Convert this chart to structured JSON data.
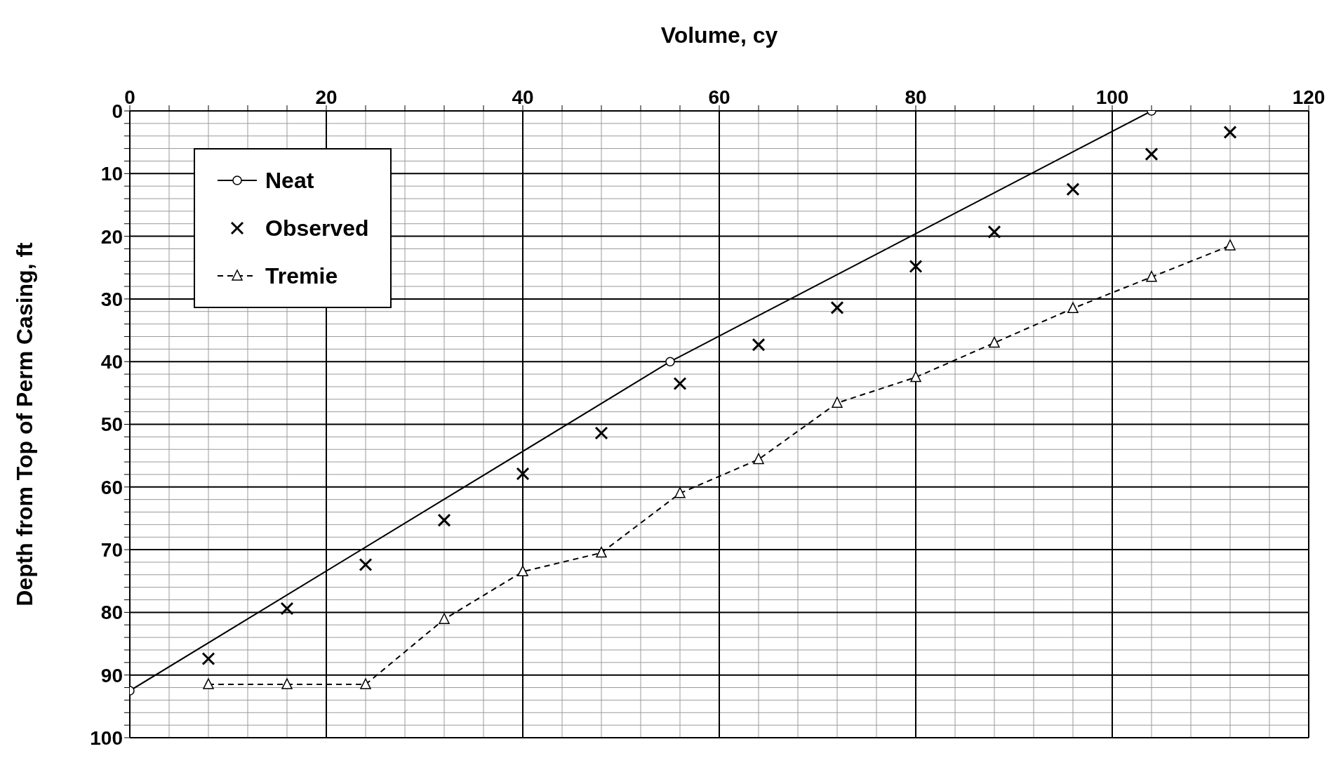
{
  "chart_data": {
    "type": "line",
    "xlabel": "Volume, cy",
    "ylabel": "Depth from Top of Perm Casing, ft",
    "xlim": [
      0,
      120
    ],
    "ylim": [
      100,
      0
    ],
    "xticks": [
      0,
      {
        "value": 4,
        "label": null
      },
      {
        "value": 8,
        "label": null
      },
      {
        "value": 12,
        "label": null
      },
      {
        "value": 16,
        "label": null
      },
      20,
      {
        "value": 24,
        "label": null
      },
      {
        "value": 28,
        "label": null
      },
      {
        "value": 32,
        "label": null
      },
      {
        "value": 36,
        "label": null
      },
      40,
      {
        "value": 44,
        "label": null
      },
      {
        "value": 48,
        "label": null
      },
      {
        "value": 52,
        "label": null
      },
      {
        "value": 56,
        "label": null
      },
      60,
      {
        "value": 64,
        "label": null
      },
      {
        "value": 68,
        "label": null
      },
      {
        "value": 72,
        "label": null
      },
      {
        "value": 76,
        "label": null
      },
      80,
      {
        "value": 84,
        "label": null
      },
      {
        "value": 88,
        "label": null
      },
      {
        "value": 92,
        "label": null
      },
      {
        "value": 96,
        "label": null
      },
      100,
      {
        "value": 104,
        "label": null
      },
      {
        "value": 108,
        "label": null
      },
      {
        "value": 112,
        "label": null
      },
      {
        "value": 116,
        "label": null
      },
      120
    ],
    "yticks": [
      0,
      {
        "value": 2,
        "label": null
      },
      {
        "value": 4,
        "label": null
      },
      {
        "value": 6,
        "label": null
      },
      {
        "value": 8,
        "label": null
      },
      10,
      {
        "value": 12,
        "label": null
      },
      {
        "value": 14,
        "label": null
      },
      {
        "value": 16,
        "label": null
      },
      {
        "value": 18,
        "label": null
      },
      20,
      {
        "value": 22,
        "label": null
      },
      {
        "value": 24,
        "label": null
      },
      {
        "value": 26,
        "label": null
      },
      {
        "value": 28,
        "label": null
      },
      30,
      {
        "value": 32,
        "label": null
      },
      {
        "value": 34,
        "label": null
      },
      {
        "value": 36,
        "label": null
      },
      {
        "value": 38,
        "label": null
      },
      40,
      {
        "value": 42,
        "label": null
      },
      {
        "value": 44,
        "label": null
      },
      {
        "value": 46,
        "label": null
      },
      {
        "value": 48,
        "label": null
      },
      50,
      {
        "value": 52,
        "label": null
      },
      {
        "value": 54,
        "label": null
      },
      {
        "value": 56,
        "label": null
      },
      {
        "value": 58,
        "label": null
      },
      60,
      {
        "value": 62,
        "label": null
      },
      {
        "value": 64,
        "label": null
      },
      {
        "value": 66,
        "label": null
      },
      {
        "value": 68,
        "label": null
      },
      70,
      {
        "value": 72,
        "label": null
      },
      {
        "value": 74,
        "label": null
      },
      {
        "value": 76,
        "label": null
      },
      {
        "value": 78,
        "label": null
      },
      80,
      {
        "value": 82,
        "label": null
      },
      {
        "value": 84,
        "label": null
      },
      {
        "value": 86,
        "label": null
      },
      {
        "value": 88,
        "label": null
      },
      90,
      {
        "value": 92,
        "label": null
      },
      {
        "value": 94,
        "label": null
      },
      {
        "value": 96,
        "label": null
      },
      {
        "value": 98,
        "label": null
      },
      100
    ],
    "grid": true,
    "legend": "top left",
    "series": [
      {
        "name": "Neat",
        "type": "line",
        "color": "#000000",
        "marker": "circle",
        "line_style": "solid",
        "x": [
          0,
          55,
          104
        ],
        "values": [
          92.5,
          40,
          0
        ]
      },
      {
        "name": "Observed",
        "type": "scatter",
        "color": "#000000",
        "marker": "cross",
        "x": [
          8,
          16,
          24,
          32,
          40,
          48,
          56,
          64,
          72,
          80,
          88,
          96,
          104,
          112
        ],
        "values": [
          87.4,
          79.4,
          72.4,
          65.3,
          57.9,
          51.4,
          43.5,
          37.3,
          31.4,
          24.8,
          19.3,
          12.5,
          6.9,
          3.4
        ]
      },
      {
        "name": "Tremie",
        "type": "line",
        "color": "#000000",
        "marker": "triangle",
        "line_style": "dashed",
        "x": [
          8,
          16,
          24,
          32,
          40,
          48,
          56,
          64,
          72,
          80,
          88,
          96,
          104,
          112
        ],
        "values": [
          91.5,
          91.5,
          91.5,
          81.1,
          73.5,
          70.5,
          61,
          55.6,
          46.6,
          42.5,
          37,
          31.5,
          26.5,
          21.5
        ]
      }
    ]
  }
}
